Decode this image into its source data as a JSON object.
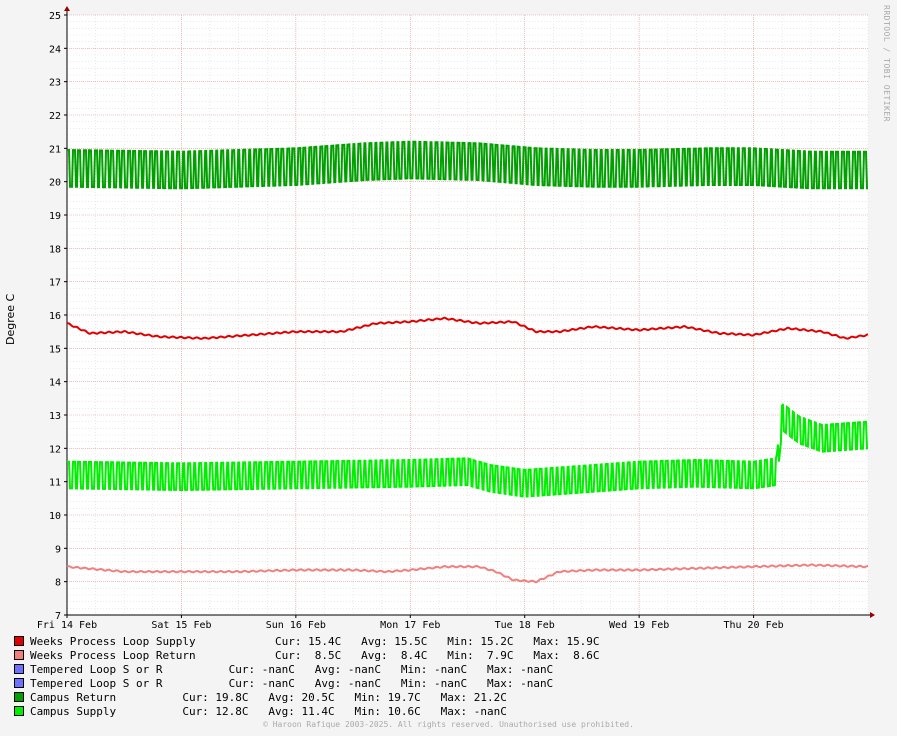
{
  "chart_data": {
    "type": "line",
    "ylabel": "Degree C",
    "ylim": [
      7,
      25
    ],
    "y_ticks": [
      7,
      8,
      9,
      10,
      11,
      12,
      13,
      14,
      15,
      16,
      17,
      18,
      19,
      20,
      21,
      22,
      23,
      24,
      25
    ],
    "x_tick_labels": [
      "Fri 14 Feb",
      "Sat 15 Feb",
      "Sun 16 Feb",
      "Mon 17 Feb",
      "Tue 18 Feb",
      "Wed 19 Feb",
      "Thu 20 Feb"
    ],
    "x_range_days": [
      0,
      7
    ],
    "grid": true,
    "legend_position": "bottom",
    "series": [
      {
        "name": "Weeks Process Loop Supply",
        "color": "#e00000",
        "avg": 15.5,
        "min": 15.2,
        "max": 15.9,
        "cur": 15.4,
        "profile": [
          [
            0,
            15.75
          ],
          [
            0.2,
            15.45
          ],
          [
            0.5,
            15.5
          ],
          [
            0.8,
            15.35
          ],
          [
            1.2,
            15.3
          ],
          [
            1.6,
            15.4
          ],
          [
            2.0,
            15.5
          ],
          [
            2.4,
            15.5
          ],
          [
            2.7,
            15.75
          ],
          [
            3.0,
            15.8
          ],
          [
            3.3,
            15.9
          ],
          [
            3.6,
            15.75
          ],
          [
            3.9,
            15.8
          ],
          [
            4.1,
            15.5
          ],
          [
            4.3,
            15.5
          ],
          [
            4.6,
            15.65
          ],
          [
            5.0,
            15.55
          ],
          [
            5.4,
            15.65
          ],
          [
            5.7,
            15.45
          ],
          [
            6.0,
            15.4
          ],
          [
            6.3,
            15.6
          ],
          [
            6.6,
            15.5
          ],
          [
            6.8,
            15.3
          ],
          [
            7.0,
            15.4
          ]
        ]
      },
      {
        "name": "Weeks Process Loop Return",
        "color": "#f08080",
        "avg": 8.4,
        "min": 7.9,
        "max": 8.6,
        "cur": 8.5,
        "profile": [
          [
            0,
            8.45
          ],
          [
            0.5,
            8.3
          ],
          [
            1.0,
            8.3
          ],
          [
            1.5,
            8.3
          ],
          [
            2.0,
            8.35
          ],
          [
            2.5,
            8.35
          ],
          [
            2.8,
            8.3
          ],
          [
            3.0,
            8.35
          ],
          [
            3.3,
            8.45
          ],
          [
            3.6,
            8.45
          ],
          [
            3.75,
            8.3
          ],
          [
            3.9,
            8.05
          ],
          [
            4.1,
            8.0
          ],
          [
            4.3,
            8.3
          ],
          [
            4.6,
            8.35
          ],
          [
            5.0,
            8.35
          ],
          [
            5.5,
            8.4
          ],
          [
            6.0,
            8.45
          ],
          [
            6.5,
            8.5
          ],
          [
            7.0,
            8.45
          ]
        ]
      },
      {
        "name": "Tempered Loop S or R",
        "color": "#7070ff",
        "avg": "-nanC",
        "min": "-nanC",
        "max": "-nanC",
        "cur": "-nanC",
        "profile": []
      },
      {
        "name": "Tempered Loop S or R",
        "color": "#7070ff",
        "avg": "-nanC",
        "min": "-nanC",
        "max": "-nanC",
        "cur": "-nanC",
        "profile": []
      },
      {
        "name": "Campus Return",
        "color": "#00a000",
        "avg": 20.5,
        "min": 19.7,
        "max": 21.2,
        "cur": 19.8,
        "osc_amp": 0.55,
        "osc_period": 0.048,
        "profile": [
          [
            0,
            20.4
          ],
          [
            1.0,
            20.35
          ],
          [
            2.0,
            20.45
          ],
          [
            2.6,
            20.6
          ],
          [
            3.0,
            20.65
          ],
          [
            3.6,
            20.6
          ],
          [
            4.1,
            20.45
          ],
          [
            4.6,
            20.4
          ],
          [
            5.0,
            20.4
          ],
          [
            5.6,
            20.45
          ],
          [
            6.0,
            20.45
          ],
          [
            6.5,
            20.35
          ],
          [
            7.0,
            20.35
          ]
        ]
      },
      {
        "name": "Campus Supply",
        "color": "#00ee00",
        "avg": 11.4,
        "min": 10.6,
        "max": "-nanC",
        "cur": 12.8,
        "osc_amp": 0.4,
        "osc_period": 0.048,
        "profile": [
          [
            0,
            11.2
          ],
          [
            1.0,
            11.15
          ],
          [
            2.0,
            11.2
          ],
          [
            3.0,
            11.25
          ],
          [
            3.5,
            11.3
          ],
          [
            3.7,
            11.1
          ],
          [
            4.0,
            10.95
          ],
          [
            4.4,
            11.05
          ],
          [
            5.0,
            11.2
          ],
          [
            5.5,
            11.25
          ],
          [
            6.0,
            11.2
          ],
          [
            6.2,
            11.3
          ],
          [
            6.25,
            12.95
          ],
          [
            6.4,
            12.55
          ],
          [
            6.6,
            12.3
          ],
          [
            7.0,
            12.4
          ]
        ]
      }
    ]
  },
  "legend": [
    {
      "label": "Weeks Process Loop Supply",
      "color": "#e00000",
      "stats": "            Cur: 15.4C   Avg: 15.5C   Min: 15.2C   Max: 15.9C"
    },
    {
      "label": "Weeks Process Loop Return",
      "color": "#f08080",
      "stats": "            Cur:  8.5C   Avg:  8.4C   Min:  7.9C   Max:  8.6C"
    },
    {
      "label": "Tempered Loop S or R",
      "color": "#7070ff",
      "stats": "          Cur: -nanC   Avg: -nanC   Min: -nanC   Max: -nanC"
    },
    {
      "label": "Tempered Loop S or R",
      "color": "#7070ff",
      "stats": "          Cur: -nanC   Avg: -nanC   Min: -nanC   Max: -nanC"
    },
    {
      "label": "Campus Return",
      "color": "#00a000",
      "stats": "          Cur: 19.8C   Avg: 20.5C   Min: 19.7C   Max: 21.2C"
    },
    {
      "label": "Campus Supply",
      "color": "#00ee00",
      "stats": "          Cur: 12.8C   Avg: 11.4C   Min: 10.6C   Max: -nanC"
    }
  ],
  "watermark": "RRDTOOL / TOBI OETIKER",
  "copyright": "© Haroon Rafique 2003-2025. All rights reserved. Unauthorised use prohibited."
}
